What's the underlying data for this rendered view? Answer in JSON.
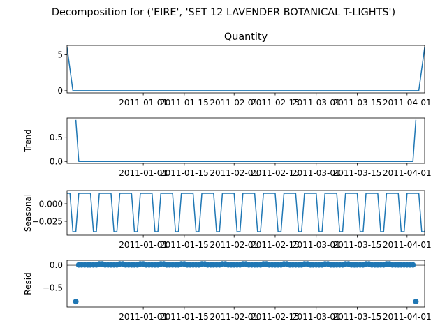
{
  "chart_data": {
    "type": "line",
    "title": "Decomposition for ('EIRE', 'SET 12 LAVENDER  BOTANICAL T-LIGHTS')",
    "line_color": "#1f77b4",
    "marker_color": "#1f77b4",
    "x_range": [
      "2010-12-06",
      "2011-04-07"
    ],
    "x_ticks": [
      "2011-01-01",
      "2011-01-15",
      "2011-02-01",
      "2011-02-15",
      "2011-03-01",
      "2011-03-15",
      "2011-04-01"
    ],
    "panels": [
      {
        "name": "observed",
        "title": "Quantity",
        "ylabel": "",
        "type": "line",
        "ylim": [
          -0.3,
          6.3
        ],
        "yticks": [
          0,
          5
        ],
        "ytick_labels": [
          "0",
          "5"
        ],
        "points": [
          [
            "2010-12-06",
            6
          ],
          [
            "2010-12-08",
            0
          ],
          [
            "2011-04-05",
            0
          ],
          [
            "2011-04-07",
            6
          ]
        ]
      },
      {
        "name": "trend",
        "title": "",
        "ylabel": "Trend",
        "type": "line",
        "ylim": [
          -0.04,
          0.9
        ],
        "yticks": [
          0.0,
          0.5
        ],
        "ytick_labels": [
          "0.0",
          "0.5"
        ],
        "points": [
          [
            "2010-12-09",
            0.86
          ],
          [
            "2010-12-10",
            0.0
          ],
          [
            "2011-04-03",
            0.0
          ],
          [
            "2011-04-04",
            0.86
          ]
        ]
      },
      {
        "name": "seasonal",
        "title": "",
        "ylabel": "Seasonal",
        "type": "line",
        "ylim": [
          -0.045,
          0.019
        ],
        "yticks": [
          0.0,
          -0.025
        ],
        "ytick_labels": [
          "0.000",
          "−0.025"
        ],
        "period_days": 7,
        "pattern_start": "2010-12-06",
        "pattern": [
          0.015,
          0.015,
          -0.04,
          -0.04,
          0.015,
          0.015,
          0.015
        ]
      },
      {
        "name": "resid",
        "title": "",
        "ylabel": "Resid",
        "type": "scatter",
        "ylim": [
          -0.92,
          0.1
        ],
        "yticks": [
          0.0,
          -0.5
        ],
        "ytick_labels": [
          "0.0",
          "−0.5"
        ],
        "zero_line": true,
        "points": [
          [
            "2010-12-09",
            -0.8
          ],
          [
            "2010-12-10",
            0.0
          ],
          [
            "2010-12-11",
            0.0
          ],
          [
            "2010-12-12",
            0.0
          ],
          [
            "2010-12-13",
            0.0
          ],
          [
            "2010-12-14",
            0.0
          ],
          [
            "2010-12-15",
            0.0
          ],
          [
            "2010-12-16",
            0.0
          ],
          [
            "2010-12-17",
            0.02
          ],
          [
            "2010-12-18",
            0.02
          ],
          [
            "2010-12-19",
            0.0
          ],
          [
            "2010-12-20",
            0.0
          ],
          [
            "2010-12-21",
            0.0
          ],
          [
            "2010-12-22",
            0.0
          ],
          [
            "2010-12-23",
            0.0
          ],
          [
            "2010-12-24",
            0.02
          ],
          [
            "2010-12-25",
            0.02
          ],
          [
            "2010-12-26",
            0.0
          ],
          [
            "2010-12-27",
            0.0
          ],
          [
            "2010-12-28",
            0.0
          ],
          [
            "2010-12-29",
            0.0
          ],
          [
            "2010-12-30",
            0.0
          ],
          [
            "2010-12-31",
            0.02
          ],
          [
            "2011-01-01",
            0.02
          ],
          [
            "2011-01-02",
            0.0
          ],
          [
            "2011-01-03",
            0.0
          ],
          [
            "2011-01-04",
            0.0
          ],
          [
            "2011-01-05",
            0.0
          ],
          [
            "2011-01-06",
            0.0
          ],
          [
            "2011-01-07",
            0.02
          ],
          [
            "2011-01-08",
            0.02
          ],
          [
            "2011-01-09",
            0.0
          ],
          [
            "2011-01-10",
            0.0
          ],
          [
            "2011-01-11",
            0.0
          ],
          [
            "2011-01-12",
            0.0
          ],
          [
            "2011-01-13",
            0.0
          ],
          [
            "2011-01-14",
            0.02
          ],
          [
            "2011-01-15",
            0.02
          ],
          [
            "2011-01-16",
            0.0
          ],
          [
            "2011-01-17",
            0.0
          ],
          [
            "2011-01-18",
            0.0
          ],
          [
            "2011-01-19",
            0.0
          ],
          [
            "2011-01-20",
            0.0
          ],
          [
            "2011-01-21",
            0.02
          ],
          [
            "2011-01-22",
            0.02
          ],
          [
            "2011-01-23",
            0.0
          ],
          [
            "2011-01-24",
            0.0
          ],
          [
            "2011-01-25",
            0.0
          ],
          [
            "2011-01-26",
            0.0
          ],
          [
            "2011-01-27",
            0.0
          ],
          [
            "2011-01-28",
            0.02
          ],
          [
            "2011-01-29",
            0.02
          ],
          [
            "2011-01-30",
            0.0
          ],
          [
            "2011-01-31",
            0.0
          ],
          [
            "2011-02-01",
            0.0
          ],
          [
            "2011-02-02",
            0.0
          ],
          [
            "2011-02-03",
            0.0
          ],
          [
            "2011-02-04",
            0.02
          ],
          [
            "2011-02-05",
            0.02
          ],
          [
            "2011-02-06",
            0.0
          ],
          [
            "2011-02-07",
            0.0
          ],
          [
            "2011-02-08",
            0.0
          ],
          [
            "2011-02-09",
            0.0
          ],
          [
            "2011-02-10",
            0.0
          ],
          [
            "2011-02-11",
            0.02
          ],
          [
            "2011-02-12",
            0.02
          ],
          [
            "2011-02-13",
            0.0
          ],
          [
            "2011-02-14",
            0.0
          ],
          [
            "2011-02-15",
            0.0
          ],
          [
            "2011-02-16",
            0.0
          ],
          [
            "2011-02-17",
            0.0
          ],
          [
            "2011-02-18",
            0.02
          ],
          [
            "2011-02-19",
            0.02
          ],
          [
            "2011-02-20",
            0.0
          ],
          [
            "2011-02-21",
            0.0
          ],
          [
            "2011-02-22",
            0.0
          ],
          [
            "2011-02-23",
            0.0
          ],
          [
            "2011-02-24",
            0.0
          ],
          [
            "2011-02-25",
            0.02
          ],
          [
            "2011-02-26",
            0.02
          ],
          [
            "2011-02-27",
            0.0
          ],
          [
            "2011-02-28",
            0.0
          ],
          [
            "2011-03-01",
            0.0
          ],
          [
            "2011-03-02",
            0.0
          ],
          [
            "2011-03-03",
            0.0
          ],
          [
            "2011-03-04",
            0.02
          ],
          [
            "2011-03-05",
            0.02
          ],
          [
            "2011-03-06",
            0.0
          ],
          [
            "2011-03-07",
            0.0
          ],
          [
            "2011-03-08",
            0.0
          ],
          [
            "2011-03-09",
            0.0
          ],
          [
            "2011-03-10",
            0.0
          ],
          [
            "2011-03-11",
            0.02
          ],
          [
            "2011-03-12",
            0.02
          ],
          [
            "2011-03-13",
            0.0
          ],
          [
            "2011-03-14",
            0.0
          ],
          [
            "2011-03-15",
            0.0
          ],
          [
            "2011-03-16",
            0.0
          ],
          [
            "2011-03-17",
            0.0
          ],
          [
            "2011-03-18",
            0.02
          ],
          [
            "2011-03-19",
            0.02
          ],
          [
            "2011-03-20",
            0.0
          ],
          [
            "2011-03-21",
            0.0
          ],
          [
            "2011-03-22",
            0.0
          ],
          [
            "2011-03-23",
            0.0
          ],
          [
            "2011-03-24",
            0.0
          ],
          [
            "2011-03-25",
            0.02
          ],
          [
            "2011-03-26",
            0.02
          ],
          [
            "2011-03-27",
            0.0
          ],
          [
            "2011-03-28",
            0.0
          ],
          [
            "2011-03-29",
            0.0
          ],
          [
            "2011-03-30",
            0.0
          ],
          [
            "2011-03-31",
            0.0
          ],
          [
            "2011-04-01",
            0.0
          ],
          [
            "2011-04-02",
            0.0
          ],
          [
            "2011-04-03",
            0.0
          ],
          [
            "2011-04-04",
            -0.8
          ]
        ]
      }
    ]
  }
}
